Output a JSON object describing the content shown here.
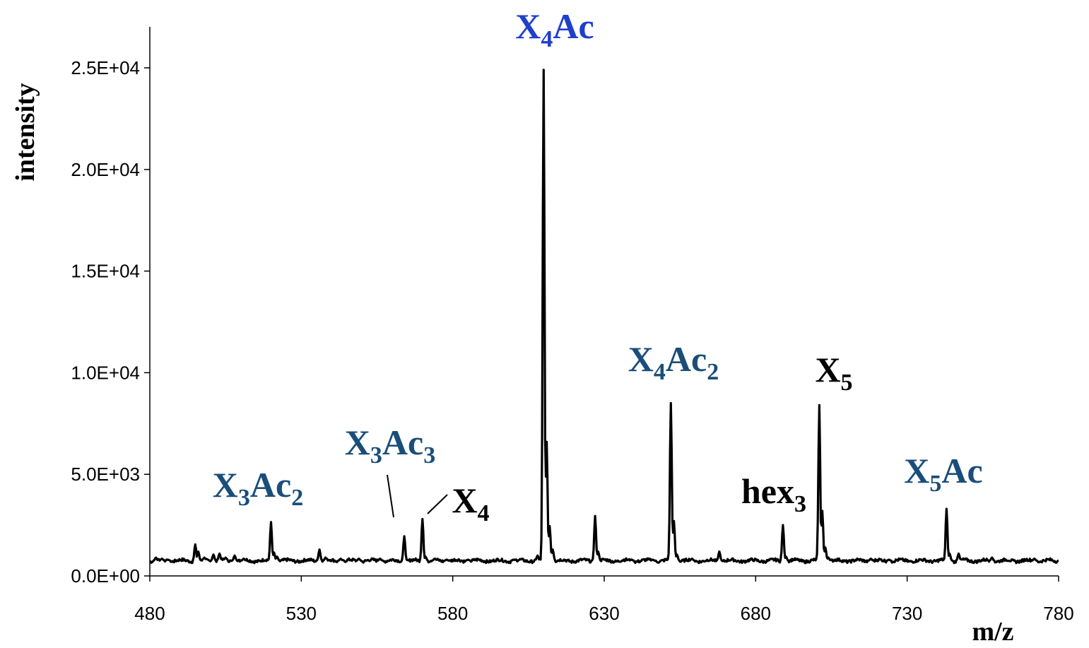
{
  "chart_data": {
    "type": "line",
    "xlabel": "m/z",
    "ylabel": "intensity",
    "xlim": [
      480,
      780
    ],
    "ylim": [
      0,
      27000
    ],
    "x_ticks": [
      "480",
      "530",
      "580",
      "630",
      "680",
      "730",
      "780"
    ],
    "y_ticks": [
      "0.0E+00",
      "5.0E+03",
      "1.0E+04",
      "1.5E+04",
      "2.0E+04",
      "2.5E+04"
    ],
    "x_tick_values": [
      480,
      530,
      580,
      630,
      680,
      730,
      780
    ],
    "y_tick_values": [
      0,
      5000,
      10000,
      15000,
      20000,
      25000
    ],
    "grid": false,
    "baseline": 750,
    "line_color": "#000000",
    "peaks": [
      {
        "x": 482,
        "y": 900
      },
      {
        "x": 484,
        "y": 850
      },
      {
        "x": 486,
        "y": 800
      },
      {
        "x": 495,
        "y": 1550
      },
      {
        "x": 496,
        "y": 1200
      },
      {
        "x": 498,
        "y": 900
      },
      {
        "x": 501,
        "y": 1050
      },
      {
        "x": 503,
        "y": 1100
      },
      {
        "x": 505,
        "y": 900
      },
      {
        "x": 508,
        "y": 1000
      },
      {
        "x": 511,
        "y": 850
      },
      {
        "x": 520,
        "y": 2650
      },
      {
        "x": 521,
        "y": 1150
      },
      {
        "x": 522,
        "y": 950
      },
      {
        "x": 536,
        "y": 1300
      },
      {
        "x": 538,
        "y": 900
      },
      {
        "x": 543,
        "y": 850
      },
      {
        "x": 549,
        "y": 850
      },
      {
        "x": 556,
        "y": 850
      },
      {
        "x": 564,
        "y": 1950
      },
      {
        "x": 570,
        "y": 2800
      },
      {
        "x": 571,
        "y": 950
      },
      {
        "x": 574,
        "y": 850
      },
      {
        "x": 578,
        "y": 800
      },
      {
        "x": 585,
        "y": 800
      },
      {
        "x": 600,
        "y": 800
      },
      {
        "x": 608,
        "y": 1000
      },
      {
        "x": 610,
        "y": 24900
      },
      {
        "x": 611,
        "y": 6600
      },
      {
        "x": 612,
        "y": 2450
      },
      {
        "x": 613,
        "y": 1300
      },
      {
        "x": 627,
        "y": 2950
      },
      {
        "x": 628,
        "y": 1200
      },
      {
        "x": 639,
        "y": 800
      },
      {
        "x": 646,
        "y": 800
      },
      {
        "x": 652,
        "y": 8500
      },
      {
        "x": 653,
        "y": 2700
      },
      {
        "x": 654,
        "y": 1050
      },
      {
        "x": 659,
        "y": 850
      },
      {
        "x": 668,
        "y": 1200
      },
      {
        "x": 689,
        "y": 2500
      },
      {
        "x": 690,
        "y": 950
      },
      {
        "x": 693,
        "y": 800
      },
      {
        "x": 701,
        "y": 8400
      },
      {
        "x": 702,
        "y": 3200
      },
      {
        "x": 703,
        "y": 1400
      },
      {
        "x": 704,
        "y": 900
      },
      {
        "x": 718,
        "y": 850
      },
      {
        "x": 724,
        "y": 800
      },
      {
        "x": 743,
        "y": 3300
      },
      {
        "x": 744,
        "y": 1100
      },
      {
        "x": 747,
        "y": 1100
      },
      {
        "x": 758,
        "y": 900
      },
      {
        "x": 772,
        "y": 850
      }
    ],
    "annotations": [
      {
        "name": "X4Ac",
        "base": "X",
        "sub1": "4",
        "mid": "Ac",
        "sub2": "",
        "color": "#1f3fcc"
      },
      {
        "name": "X3Ac2",
        "base": "X",
        "sub1": "3",
        "mid": "Ac",
        "sub2": "2",
        "color": "#1a4e7a"
      },
      {
        "name": "X3Ac3",
        "base": "X",
        "sub1": "3",
        "mid": "Ac",
        "sub2": "3",
        "color": "#1a4e7a"
      },
      {
        "name": "X4",
        "base": "X",
        "sub1": "4",
        "mid": "",
        "sub2": "",
        "color": "#000000"
      },
      {
        "name": "X4Ac2",
        "base": "X",
        "sub1": "4",
        "mid": "Ac",
        "sub2": "2",
        "color": "#1a4e7a"
      },
      {
        "name": "X5",
        "base": "X",
        "sub1": "5",
        "mid": "",
        "sub2": "",
        "color": "#000000"
      },
      {
        "name": "hex3",
        "base": "hex",
        "sub1": "3",
        "mid": "",
        "sub2": "",
        "color": "#000000"
      },
      {
        "name": "X5Ac",
        "base": "X",
        "sub1": "5",
        "mid": "Ac",
        "sub2": "",
        "color": "#1a4e7a"
      }
    ]
  }
}
